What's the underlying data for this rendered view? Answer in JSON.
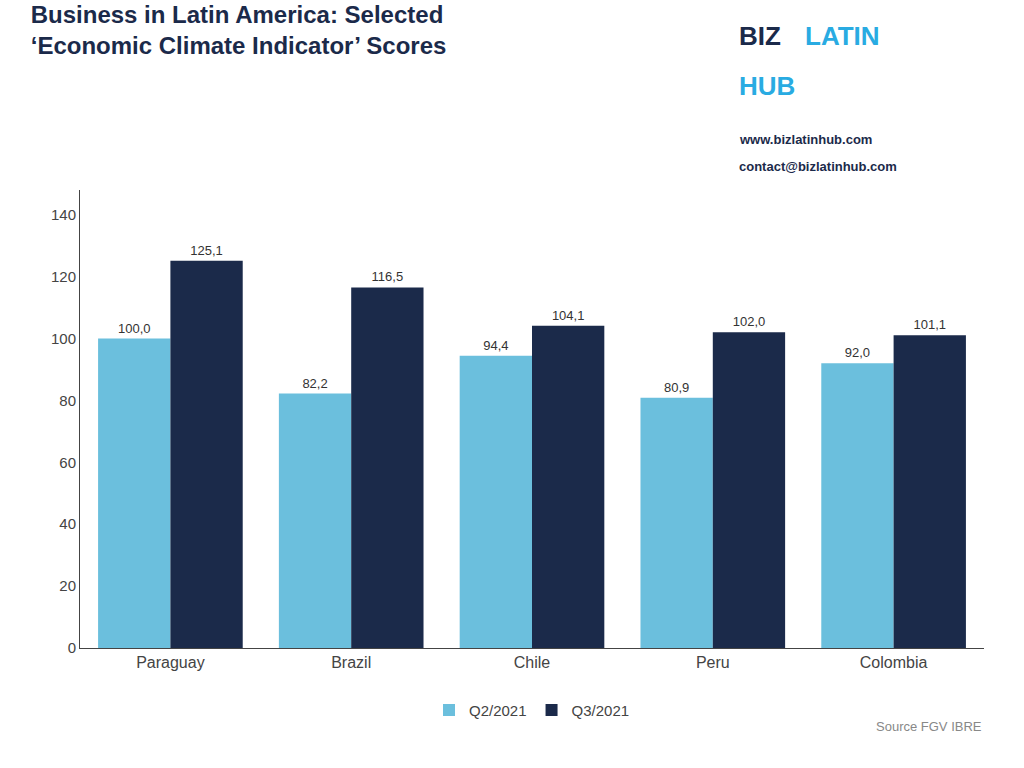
{
  "chart_data": {
    "type": "bar",
    "title": "Business in Latin America: Selected\n‘Economic Climate Indicator’ Scores",
    "categories": [
      "Paraguay",
      "Brazil",
      "Chile",
      "Peru",
      "Colombia"
    ],
    "series": [
      {
        "name": "Q2/2021",
        "color": "#6BBFDD",
        "values": [
          100.0,
          82.2,
          94.4,
          80.9,
          92.0
        ],
        "value_labels": [
          "100,0",
          "82,2",
          "94,4",
          "80,9",
          "92,0"
        ]
      },
      {
        "name": "Q3/2021",
        "color": "#1B2A4A",
        "values": [
          125.1,
          116.5,
          104.1,
          102.0,
          101.1
        ],
        "value_labels": [
          "125,1",
          "116,5",
          "104,1",
          "102,0",
          "101,1"
        ]
      }
    ],
    "ylim": [
      0,
      148
    ],
    "yticks": [
      0,
      20,
      40,
      60,
      80,
      100,
      120,
      140
    ],
    "grid": false,
    "legend": "bottom",
    "data_labels": true,
    "annotations": [
      {
        "text": "BIZ",
        "color": "#1B2A4A"
      },
      {
        "text": "LATIN",
        "color": "#29ABE2"
      },
      {
        "text": "HUB",
        "color": "#29ABE2"
      },
      {
        "text": "www.bizlatinhub.com",
        "color": "#1B2A4A"
      },
      {
        "text": "contact@bizlatinhub.com",
        "color": "#1B2A4A"
      },
      {
        "text": "Source FGV IBRE",
        "color": "#888888"
      }
    ]
  }
}
